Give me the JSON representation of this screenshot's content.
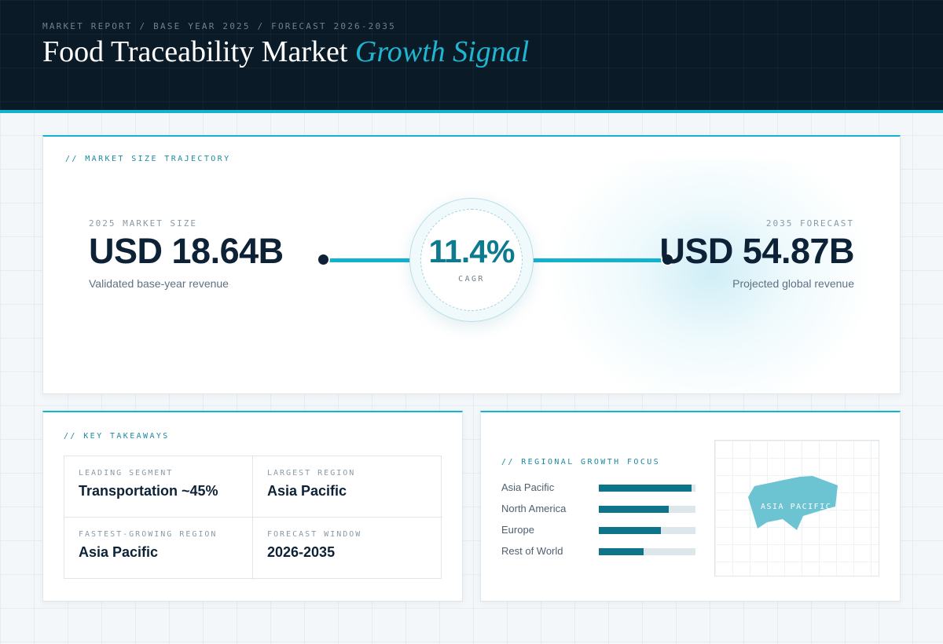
{
  "header": {
    "eyebrow": "MARKET REPORT / BASE YEAR 2025 / FORECAST 2026-2035",
    "title_main": "Food Traceability Market ",
    "title_accent": "Growth Signal"
  },
  "trajectory": {
    "label": "// MARKET SIZE TRAJECTORY",
    "base": {
      "label": "2025 MARKET SIZE",
      "value": "USD 18.64B",
      "sub": "Validated base-year revenue"
    },
    "cagr": {
      "value": "11.4%",
      "label": "CAGR"
    },
    "forecast": {
      "label": "2035 FORECAST",
      "value": "USD 54.87B",
      "sub": "Projected global revenue"
    }
  },
  "takeaways": {
    "label": "// KEY TAKEAWAYS",
    "cells": [
      {
        "label": "LEADING SEGMENT",
        "value": "Transportation ~45%"
      },
      {
        "label": "LARGEST REGION",
        "value": "Asia Pacific"
      },
      {
        "label": "FASTEST-GROWING REGION",
        "value": "Asia Pacific"
      },
      {
        "label": "FORECAST WINDOW",
        "value": "2026-2035"
      }
    ]
  },
  "regional": {
    "label": "// REGIONAL GROWTH FOCUS",
    "regions": [
      {
        "name": "Asia Pacific",
        "level": 0.96
      },
      {
        "name": "North America",
        "level": 0.72
      },
      {
        "name": "Europe",
        "level": 0.64
      },
      {
        "name": "Rest of World",
        "level": 0.46
      }
    ],
    "map_label": "ASIA PACIFIC"
  },
  "colors": {
    "accent": "#12b3cf",
    "accent_dark": "#0e7489",
    "navy": "#0a1a27",
    "map_fill": "#6cc3d1"
  }
}
